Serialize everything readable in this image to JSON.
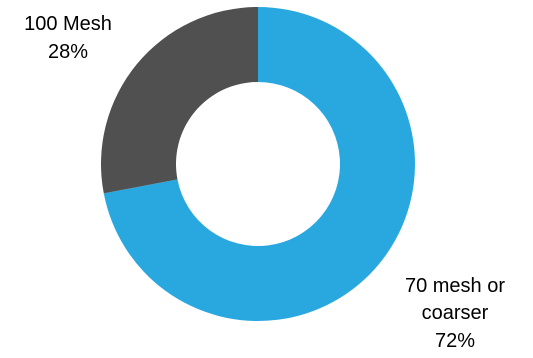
{
  "chart_data": {
    "type": "pie",
    "variant": "donut",
    "title": "",
    "slices": [
      {
        "label_lines": [
          "70 mesh or",
          "coarser"
        ],
        "pct_label": "72%",
        "value": 72,
        "color": "#29a8e0"
      },
      {
        "label_lines": [
          "100 Mesh"
        ],
        "pct_label": "28%",
        "value": 28,
        "color": "#505050"
      }
    ],
    "start_angle_deg": 0,
    "direction": "clockwise",
    "legend": "none"
  }
}
